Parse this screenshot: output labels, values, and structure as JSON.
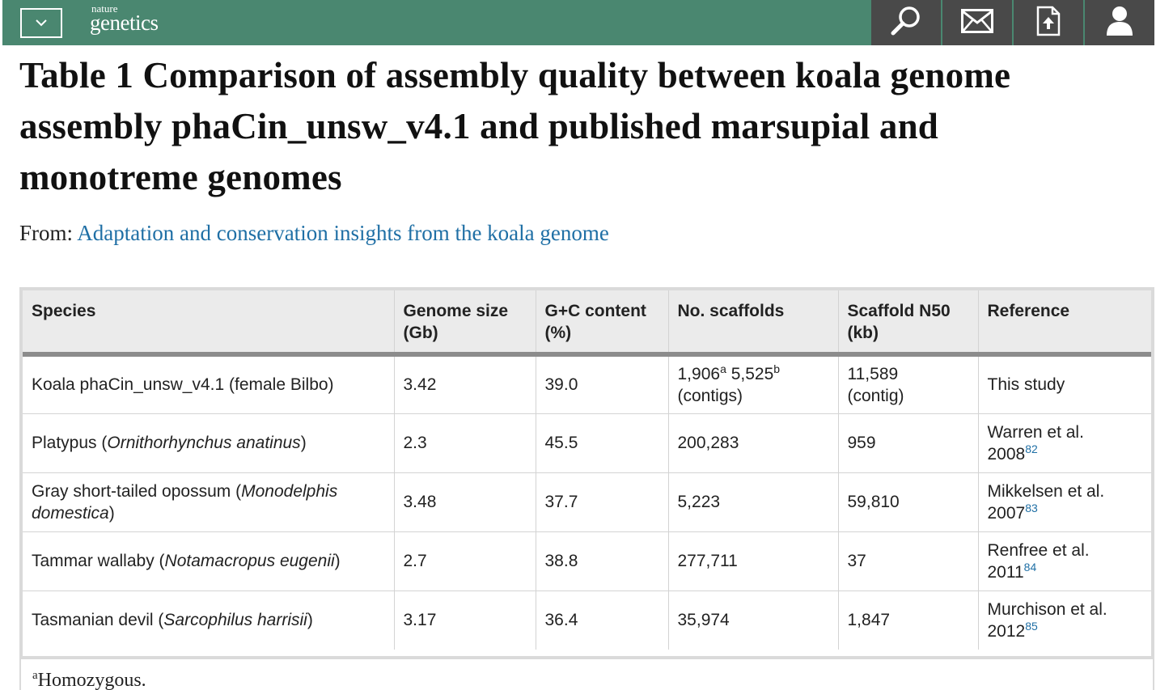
{
  "header": {
    "logo_small": "nature",
    "logo_big": "genetics",
    "icons": [
      "chevron-down-icon",
      "search-icon",
      "mail-icon",
      "download-icon",
      "user-icon"
    ],
    "colors": {
      "bar": "#4a8770",
      "tools": "#494949"
    }
  },
  "page": {
    "title_line1": "Table 1 Comparison of assembly quality between koala genome",
    "title_line2": "assembly phaCin_unsw_v4.1 and published marsupial and",
    "title_line3": "monotreme genomes",
    "from_label": "From:",
    "from_link": "Adaptation and conservation insights from the koala genome"
  },
  "table": {
    "headers": {
      "species": "Species",
      "genome_size_1": "Genome size",
      "genome_size_2": "(Gb)",
      "gc_1": "G+C content",
      "gc_2": "(%)",
      "scaffolds": "No. scaffolds",
      "n50_1": "Scaffold N50",
      "n50_2": "(kb)",
      "reference": "Reference"
    },
    "rows": [
      {
        "species_pre": "Koala phaCin_unsw_v4.1 (female Bilbo)",
        "species_italic": "",
        "species_post": "",
        "genome_size": "3.42",
        "gc": "39.0",
        "scaffolds_a": "1,906",
        "sup_a": "a",
        "scaffolds_b": " 5,525",
        "sup_b": "b",
        "scaffolds_note": "(contigs)",
        "n50": "11,589",
        "n50_note": "(contig)",
        "ref_text": "This study",
        "ref_year": "",
        "ref_num": ""
      },
      {
        "species_pre": "Platypus (",
        "species_italic": "Ornithorhynchus anatinus",
        "species_post": ")",
        "genome_size": "2.3",
        "gc": "45.5",
        "scaffolds": "200,283",
        "n50": "959",
        "ref_text": "Warren et al.",
        "ref_year": "2008",
        "ref_num": "82"
      },
      {
        "species_pre": "Gray short-tailed opossum (",
        "species_italic": "Monodelphis domestica",
        "species_post": ")",
        "genome_size": "3.48",
        "gc": "37.7",
        "scaffolds": "5,223",
        "n50": "59,810",
        "ref_text": "Mikkelsen et al.",
        "ref_year": "2007",
        "ref_num": "83"
      },
      {
        "species_pre": "Tammar wallaby (",
        "species_italic": "Notamacropus eugenii",
        "species_post": ")",
        "genome_size": "2.7",
        "gc": "38.8",
        "scaffolds": "277,711",
        "n50": "37",
        "ref_text": "Renfree et al.",
        "ref_year": "2011",
        "ref_num": "84"
      },
      {
        "species_pre": "Tasmanian devil (",
        "species_italic": "Sarcophilus harrisii",
        "species_post": ")",
        "genome_size": "3.17",
        "gc": "36.4",
        "scaffolds": "35,974",
        "n50": "1,847",
        "ref_text": "Murchison et al.",
        "ref_year": "2012",
        "ref_num": "85"
      }
    ]
  },
  "footnote": {
    "marker": "a",
    "text": "Homozygous."
  }
}
